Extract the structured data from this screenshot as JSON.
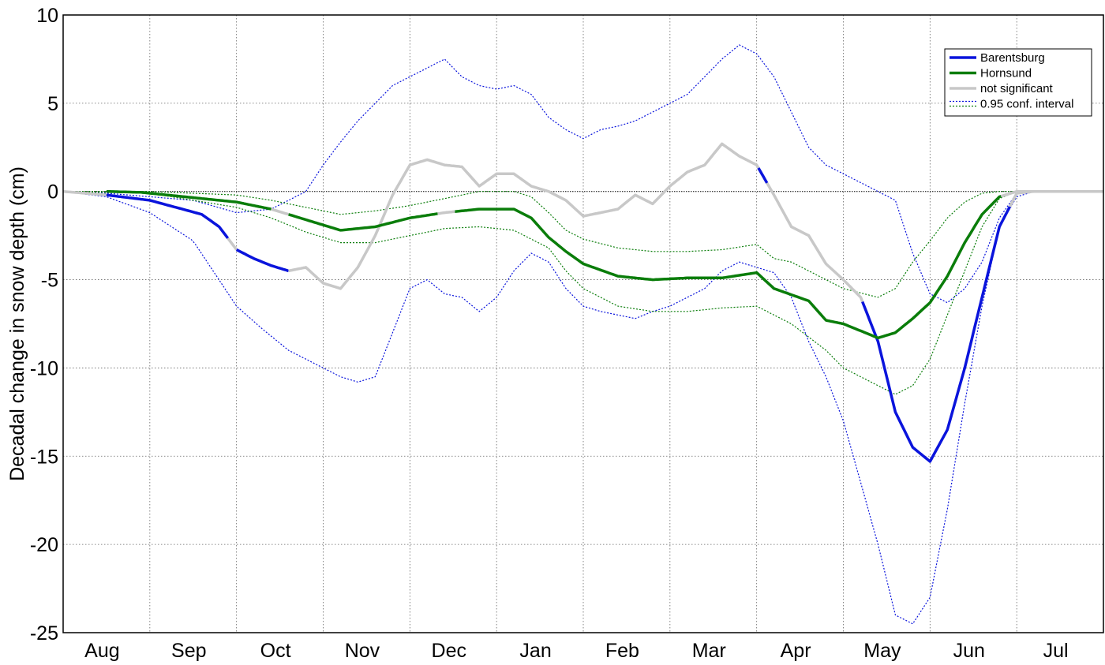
{
  "chart_data": {
    "type": "line",
    "ylabel": "Decadal change in snow depth (cm)",
    "xlabel": "",
    "ylim": [
      -25,
      10
    ],
    "yticks": [
      10,
      5,
      0,
      -5,
      -10,
      -15,
      -20,
      -25
    ],
    "ytick_labels": [
      "10",
      "5",
      "0",
      "-5",
      "-10",
      "-15",
      "-20",
      "-25"
    ],
    "xlim": [
      0,
      12
    ],
    "months": [
      "Aug",
      "Sep",
      "Oct",
      "Nov",
      "Dec",
      "Jan",
      "Feb",
      "Mar",
      "Apr",
      "May",
      "Jun",
      "Jul"
    ],
    "grid": true,
    "legend_position": "top-right",
    "legend": [
      {
        "label": "Barentsburg",
        "style": "solid",
        "color": "#0a14dc"
      },
      {
        "label": "Hornsund",
        "style": "solid",
        "color": "#0a7d0a"
      },
      {
        "label": "not significant",
        "style": "solid",
        "color": "#c8c8c8"
      },
      {
        "label": "0.95 conf. interval",
        "style": "dotted",
        "colors": [
          "#0a14dc",
          "#0a7d0a"
        ]
      }
    ],
    "series": [
      {
        "name": "Barentsburg",
        "color": "#0a14dc",
        "not_significant_color": "#c8c8c8",
        "points": [
          [
            0,
            0
          ],
          [
            0.5,
            -0.2
          ],
          [
            1,
            -0.5
          ],
          [
            1.3,
            -0.9
          ],
          [
            1.6,
            -1.3
          ],
          [
            1.8,
            -2.0
          ],
          [
            2.0,
            -3.3
          ],
          [
            2.2,
            -3.8
          ],
          [
            2.4,
            -4.2
          ],
          [
            2.6,
            -4.5
          ],
          [
            2.8,
            -4.3
          ],
          [
            3.0,
            -5.2
          ],
          [
            3.2,
            -5.5
          ],
          [
            3.4,
            -4.3
          ],
          [
            3.6,
            -2.5
          ],
          [
            3.8,
            -0.2
          ],
          [
            4.0,
            1.5
          ],
          [
            4.2,
            1.8
          ],
          [
            4.4,
            1.5
          ],
          [
            4.6,
            1.4
          ],
          [
            4.8,
            0.3
          ],
          [
            5.0,
            1.0
          ],
          [
            5.2,
            1.0
          ],
          [
            5.4,
            0.3
          ],
          [
            5.6,
            0.0
          ],
          [
            5.8,
            -0.5
          ],
          [
            6.0,
            -1.4
          ],
          [
            6.2,
            -1.2
          ],
          [
            6.4,
            -1.0
          ],
          [
            6.6,
            -0.2
          ],
          [
            6.8,
            -0.7
          ],
          [
            7.0,
            0.3
          ],
          [
            7.2,
            1.1
          ],
          [
            7.4,
            1.5
          ],
          [
            7.6,
            2.7
          ],
          [
            7.8,
            2.0
          ],
          [
            8.0,
            1.5
          ],
          [
            8.2,
            -0.2
          ],
          [
            8.4,
            -2.0
          ],
          [
            8.6,
            -2.5
          ],
          [
            8.8,
            -4.1
          ],
          [
            9.0,
            -5.0
          ],
          [
            9.2,
            -6.0
          ],
          [
            9.4,
            -8.5
          ],
          [
            9.6,
            -12.5
          ],
          [
            9.8,
            -14.5
          ],
          [
            10.0,
            -15.3
          ],
          [
            10.2,
            -13.5
          ],
          [
            10.4,
            -10.0
          ],
          [
            10.6,
            -6.0
          ],
          [
            10.8,
            -2.0
          ],
          [
            11.0,
            -0.1
          ],
          [
            11.2,
            0
          ],
          [
            12,
            0
          ]
        ],
        "significant_segments": [
          [
            0.5,
            1.9
          ],
          [
            2.0,
            2.6
          ],
          [
            8.0,
            8.1
          ],
          [
            9.2,
            10.9
          ]
        ]
      },
      {
        "name": "Hornsund",
        "color": "#0a7d0a",
        "not_significant_color": "#c8c8c8",
        "points": [
          [
            0.5,
            0
          ],
          [
            0.9,
            -0.05
          ],
          [
            1.2,
            -0.2
          ],
          [
            1.6,
            -0.4
          ],
          [
            2.0,
            -0.6
          ],
          [
            2.4,
            -1.0
          ],
          [
            2.8,
            -1.6
          ],
          [
            3.2,
            -2.2
          ],
          [
            3.6,
            -2.0
          ],
          [
            4.0,
            -1.5
          ],
          [
            4.4,
            -1.2
          ],
          [
            4.8,
            -1.0
          ],
          [
            5.2,
            -1.0
          ],
          [
            5.4,
            -1.5
          ],
          [
            5.6,
            -2.6
          ],
          [
            5.8,
            -3.4
          ],
          [
            6.0,
            -4.1
          ],
          [
            6.4,
            -4.8
          ],
          [
            6.8,
            -5.0
          ],
          [
            7.2,
            -4.9
          ],
          [
            7.6,
            -4.9
          ],
          [
            8.0,
            -4.6
          ],
          [
            8.2,
            -5.5
          ],
          [
            8.6,
            -6.2
          ],
          [
            8.8,
            -7.3
          ],
          [
            9.0,
            -7.5
          ],
          [
            9.4,
            -8.3
          ],
          [
            9.6,
            -8.0
          ],
          [
            9.8,
            -7.2
          ],
          [
            10.0,
            -6.3
          ],
          [
            10.2,
            -4.8
          ],
          [
            10.4,
            -2.9
          ],
          [
            10.6,
            -1.3
          ],
          [
            10.8,
            -0.3
          ],
          [
            11.0,
            0
          ],
          [
            12,
            0
          ]
        ],
        "significant_segments": [
          [
            0.5,
            2.4
          ],
          [
            2.6,
            4.3
          ],
          [
            4.5,
            5.6
          ],
          [
            5.6,
            10.8
          ]
        ]
      },
      {
        "name": "Barentsburg 0.95 conf. interval",
        "color": "#0a14dc",
        "lower": [
          [
            0,
            0
          ],
          [
            0.5,
            -0.3
          ],
          [
            1,
            -1.2
          ],
          [
            1.5,
            -2.8
          ],
          [
            2.0,
            -6.5
          ],
          [
            2.3,
            -7.8
          ],
          [
            2.6,
            -9.0
          ],
          [
            2.8,
            -9.5
          ],
          [
            3.0,
            -10.0
          ],
          [
            3.2,
            -10.5
          ],
          [
            3.4,
            -10.8
          ],
          [
            3.6,
            -10.5
          ],
          [
            3.8,
            -8.0
          ],
          [
            4.0,
            -5.5
          ],
          [
            4.2,
            -5.0
          ],
          [
            4.4,
            -5.8
          ],
          [
            4.6,
            -6.0
          ],
          [
            4.8,
            -6.8
          ],
          [
            5.0,
            -6.0
          ],
          [
            5.2,
            -4.5
          ],
          [
            5.4,
            -3.5
          ],
          [
            5.6,
            -4.0
          ],
          [
            5.8,
            -5.5
          ],
          [
            6.0,
            -6.5
          ],
          [
            6.2,
            -6.8
          ],
          [
            6.4,
            -7.0
          ],
          [
            6.6,
            -7.2
          ],
          [
            6.8,
            -6.8
          ],
          [
            7.0,
            -6.5
          ],
          [
            7.2,
            -6.0
          ],
          [
            7.4,
            -5.5
          ],
          [
            7.6,
            -4.5
          ],
          [
            7.8,
            -4.0
          ],
          [
            8.0,
            -4.3
          ],
          [
            8.2,
            -4.6
          ],
          [
            8.4,
            -6.0
          ],
          [
            8.6,
            -8.5
          ],
          [
            8.8,
            -10.5
          ],
          [
            9.0,
            -13.0
          ],
          [
            9.2,
            -16.5
          ],
          [
            9.4,
            -20.0
          ],
          [
            9.6,
            -24.0
          ],
          [
            9.8,
            -24.5
          ],
          [
            10.0,
            -23.0
          ],
          [
            10.2,
            -18.0
          ],
          [
            10.4,
            -12.0
          ],
          [
            10.6,
            -6.5
          ],
          [
            10.8,
            -2.0
          ],
          [
            11.0,
            -0.3
          ],
          [
            11.2,
            0
          ],
          [
            12,
            0
          ]
        ],
        "upper": [
          [
            0,
            0
          ],
          [
            0.5,
            -0.1
          ],
          [
            1,
            -0.3
          ],
          [
            1.5,
            -0.5
          ],
          [
            2.0,
            -1.2
          ],
          [
            2.4,
            -1.0
          ],
          [
            2.8,
            0.0
          ],
          [
            3.0,
            1.5
          ],
          [
            3.2,
            2.8
          ],
          [
            3.4,
            4.0
          ],
          [
            3.6,
            5.0
          ],
          [
            3.8,
            6.0
          ],
          [
            4.0,
            6.5
          ],
          [
            4.2,
            7.0
          ],
          [
            4.4,
            7.5
          ],
          [
            4.6,
            6.5
          ],
          [
            4.8,
            6.0
          ],
          [
            5.0,
            5.8
          ],
          [
            5.2,
            6.0
          ],
          [
            5.4,
            5.5
          ],
          [
            5.6,
            4.2
          ],
          [
            5.8,
            3.5
          ],
          [
            6.0,
            3.0
          ],
          [
            6.2,
            3.5
          ],
          [
            6.4,
            3.7
          ],
          [
            6.6,
            4.0
          ],
          [
            6.8,
            4.5
          ],
          [
            7.0,
            5.0
          ],
          [
            7.2,
            5.5
          ],
          [
            7.4,
            6.5
          ],
          [
            7.6,
            7.5
          ],
          [
            7.8,
            8.3
          ],
          [
            8.0,
            7.8
          ],
          [
            8.2,
            6.5
          ],
          [
            8.4,
            4.5
          ],
          [
            8.6,
            2.5
          ],
          [
            8.8,
            1.5
          ],
          [
            9.0,
            1.0
          ],
          [
            9.2,
            0.5
          ],
          [
            9.4,
            0.0
          ],
          [
            9.6,
            -0.5
          ],
          [
            9.8,
            -3.5
          ],
          [
            10.0,
            -5.8
          ],
          [
            10.2,
            -6.3
          ],
          [
            10.4,
            -5.5
          ],
          [
            10.6,
            -4.0
          ],
          [
            10.8,
            -1.5
          ],
          [
            11.0,
            -0.1
          ],
          [
            11.2,
            0
          ],
          [
            12,
            0
          ]
        ]
      },
      {
        "name": "Hornsund 0.95 conf. interval",
        "color": "#0a7d0a",
        "lower": [
          [
            0,
            0
          ],
          [
            0.5,
            -0.05
          ],
          [
            1,
            -0.1
          ],
          [
            1.5,
            -0.5
          ],
          [
            2.0,
            -0.9
          ],
          [
            2.4,
            -1.5
          ],
          [
            2.8,
            -2.3
          ],
          [
            3.2,
            -2.9
          ],
          [
            3.6,
            -2.9
          ],
          [
            4.0,
            -2.5
          ],
          [
            4.4,
            -2.1
          ],
          [
            4.8,
            -2.0
          ],
          [
            5.2,
            -2.2
          ],
          [
            5.6,
            -3.2
          ],
          [
            5.8,
            -4.5
          ],
          [
            6.0,
            -5.5
          ],
          [
            6.4,
            -6.5
          ],
          [
            6.8,
            -6.8
          ],
          [
            7.2,
            -6.8
          ],
          [
            7.6,
            -6.6
          ],
          [
            8.0,
            -6.5
          ],
          [
            8.2,
            -7.0
          ],
          [
            8.4,
            -7.5
          ],
          [
            8.8,
            -9.0
          ],
          [
            9.0,
            -10.0
          ],
          [
            9.4,
            -11.0
          ],
          [
            9.6,
            -11.5
          ],
          [
            9.8,
            -11.0
          ],
          [
            10.0,
            -9.5
          ],
          [
            10.2,
            -7.0
          ],
          [
            10.4,
            -4.5
          ],
          [
            10.6,
            -2.0
          ],
          [
            10.8,
            -0.4
          ],
          [
            11.0,
            0
          ],
          [
            12,
            0
          ]
        ],
        "upper": [
          [
            0,
            0
          ],
          [
            0.5,
            0
          ],
          [
            1,
            0
          ],
          [
            1.5,
            -0.1
          ],
          [
            2.0,
            -0.2
          ],
          [
            2.4,
            -0.5
          ],
          [
            2.8,
            -0.9
          ],
          [
            3.2,
            -1.3
          ],
          [
            3.6,
            -1.1
          ],
          [
            4.0,
            -0.8
          ],
          [
            4.4,
            -0.4
          ],
          [
            4.8,
            0
          ],
          [
            5.2,
            0
          ],
          [
            5.4,
            -0.3
          ],
          [
            5.6,
            -1.2
          ],
          [
            5.8,
            -2.2
          ],
          [
            6.0,
            -2.7
          ],
          [
            6.4,
            -3.2
          ],
          [
            6.8,
            -3.4
          ],
          [
            7.2,
            -3.4
          ],
          [
            7.6,
            -3.3
          ],
          [
            8.0,
            -3.0
          ],
          [
            8.2,
            -3.8
          ],
          [
            8.4,
            -4.0
          ],
          [
            8.8,
            -5.0
          ],
          [
            9.0,
            -5.5
          ],
          [
            9.4,
            -6.0
          ],
          [
            9.6,
            -5.5
          ],
          [
            9.8,
            -4.0
          ],
          [
            10.0,
            -2.8
          ],
          [
            10.2,
            -1.5
          ],
          [
            10.4,
            -0.6
          ],
          [
            10.6,
            -0.1
          ],
          [
            10.8,
            0
          ],
          [
            12,
            0
          ]
        ]
      }
    ]
  }
}
